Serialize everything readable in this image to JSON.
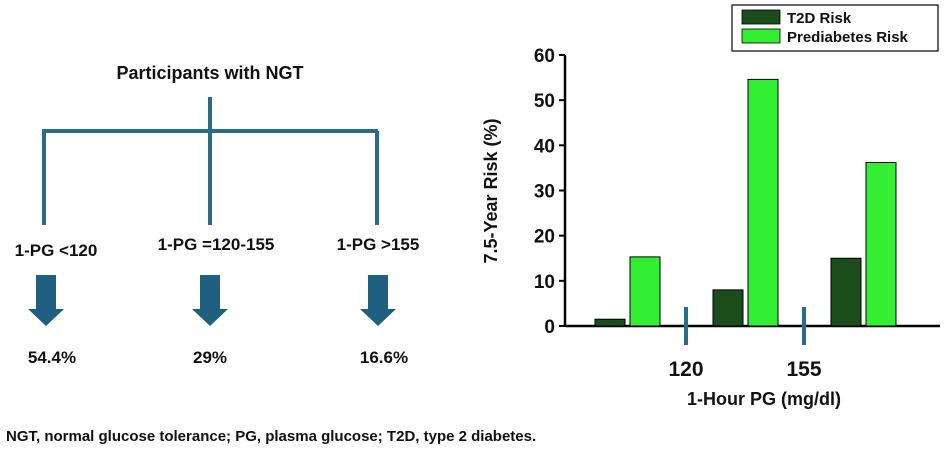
{
  "flow": {
    "title": "Participants with NGT",
    "groups": [
      {
        "label": "1-PG <120",
        "percent": "54.4%"
      },
      {
        "label": "1-PG =120-155",
        "percent": "29%"
      },
      {
        "label": "1-PG >155",
        "percent": "16.6%"
      }
    ],
    "line_color": "#2b6b8a",
    "arrow_color": "#1f5f80"
  },
  "chart_data": {
    "type": "bar",
    "title": "",
    "xlabel": "1-Hour PG   (mg/dl)",
    "ylabel": "7.5-Year Risk (%)",
    "ylim": [
      0,
      60
    ],
    "yticks": [
      0,
      10,
      20,
      30,
      40,
      50,
      60
    ],
    "grid": false,
    "legend": "top-right",
    "categories": [
      "<120",
      "120-155",
      ">155"
    ],
    "x_markers": [
      "120",
      "155"
    ],
    "series": [
      {
        "name": "T2D Risk",
        "color": "#1b4d1b",
        "values": [
          1.5,
          8,
          15
        ]
      },
      {
        "name": "Prediabetes Risk",
        "color": "#33ee33",
        "values": [
          15.3,
          54.6,
          36.2
        ]
      }
    ]
  },
  "caption": "NGT, normal glucose tolerance; PG, plasma glucose; T2D, type 2 diabetes."
}
